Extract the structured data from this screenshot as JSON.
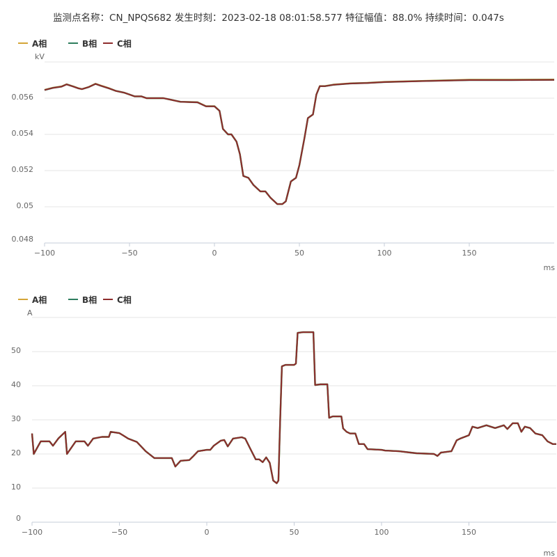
{
  "title": "监测点名称：CN_NPQS682 发生时刻：2023-02-18 08:01:58.577 特征幅值：88.0% 持续时间：0.047s",
  "colors": {
    "A": "#d4a537",
    "B": "#2e7d5e",
    "C": "#8e2c2c"
  },
  "chart_data": [
    {
      "type": "line",
      "ylabel": "kV",
      "xlabel": "ms",
      "xlim": [
        -100,
        200
      ],
      "ylim": [
        0.048,
        0.058
      ],
      "xticks": [
        "-100",
        "-50",
        "0",
        "50",
        "100",
        "150"
      ],
      "yticks": [
        "0.048",
        "0.05",
        "0.052",
        "0.054",
        "0.056"
      ],
      "grid": true,
      "legend": "top-left",
      "x": [
        -100,
        -95,
        -90,
        -87,
        -83,
        -80,
        -78,
        -74,
        -70,
        -67,
        -62,
        -58,
        -53,
        -50,
        -47,
        -43,
        -40,
        -30,
        -25,
        -20,
        -10,
        -5,
        0,
        3,
        5,
        8,
        10,
        13,
        15,
        17,
        20,
        23,
        27,
        30,
        33,
        37,
        40,
        42,
        45,
        48,
        50,
        53,
        55,
        58,
        60,
        62,
        65,
        70,
        80,
        90,
        100,
        120,
        150,
        175,
        200
      ],
      "series": [
        {
          "name": "A相",
          "values": [
            0.05646,
            0.05658,
            0.05665,
            0.05677,
            0.05665,
            0.05655,
            0.0565,
            0.05662,
            0.0568,
            0.0567,
            0.05655,
            0.0564,
            0.0563,
            0.0562,
            0.0561,
            0.0561,
            0.056,
            0.056,
            0.0559,
            0.0558,
            0.05578,
            0.05556,
            0.05556,
            0.0553,
            0.0543,
            0.054,
            0.054,
            0.0536,
            0.0529,
            0.0517,
            0.0516,
            0.0512,
            0.05085,
            0.05085,
            0.0505,
            0.05015,
            0.05015,
            0.0503,
            0.0514,
            0.0516,
            0.0523,
            0.0538,
            0.0549,
            0.0551,
            0.0562,
            0.05667,
            0.05667,
            0.05675,
            0.05682,
            0.05685,
            0.0569,
            0.05695,
            0.05702,
            0.05702,
            0.05703
          ]
        },
        {
          "name": "B相",
          "values": [
            0.05645,
            0.05657,
            0.05664,
            0.05676,
            0.05664,
            0.05654,
            0.0565,
            0.05661,
            0.05679,
            0.05669,
            0.05654,
            0.0564,
            0.0563,
            0.0562,
            0.0561,
            0.0561,
            0.056,
            0.056,
            0.0559,
            0.0558,
            0.05577,
            0.05555,
            0.05555,
            0.0553,
            0.0543,
            0.054,
            0.054,
            0.0536,
            0.0529,
            0.0517,
            0.0516,
            0.0512,
            0.05085,
            0.05085,
            0.0505,
            0.05015,
            0.05015,
            0.0503,
            0.0514,
            0.0516,
            0.0523,
            0.0538,
            0.0549,
            0.0551,
            0.0562,
            0.05666,
            0.05666,
            0.05674,
            0.05681,
            0.05684,
            0.05689,
            0.05694,
            0.057,
            0.057,
            0.05701
          ]
        },
        {
          "name": "C相",
          "values": [
            0.05645,
            0.05657,
            0.05664,
            0.05676,
            0.05664,
            0.05654,
            0.0565,
            0.05661,
            0.05679,
            0.05669,
            0.05654,
            0.0564,
            0.0563,
            0.0562,
            0.0561,
            0.0561,
            0.056,
            0.056,
            0.0559,
            0.0558,
            0.05577,
            0.05555,
            0.05555,
            0.0553,
            0.0543,
            0.054,
            0.054,
            0.0536,
            0.0529,
            0.0517,
            0.0516,
            0.0512,
            0.05085,
            0.05085,
            0.0505,
            0.05015,
            0.05015,
            0.0503,
            0.0514,
            0.0516,
            0.0523,
            0.0538,
            0.0549,
            0.0551,
            0.0562,
            0.05666,
            0.05666,
            0.05674,
            0.05681,
            0.05684,
            0.05689,
            0.05694,
            0.057,
            0.057,
            0.05701
          ]
        }
      ]
    },
    {
      "type": "line",
      "ylabel": "A",
      "xlabel": "ms",
      "xlim": [
        -100,
        200
      ],
      "ylim": [
        0,
        60
      ],
      "xticks": [
        "-100",
        "-50",
        "0",
        "50",
        "100",
        "150"
      ],
      "yticks": [
        "0",
        "10",
        "20",
        "30",
        "40",
        "50"
      ],
      "grid": true,
      "legend": "top-left",
      "x": [
        -100,
        -99,
        -95,
        -90,
        -88,
        -85,
        -81,
        -80,
        -75,
        -70,
        -68,
        -65,
        -60,
        -56,
        -55,
        -50,
        -48,
        -45,
        -40,
        -35,
        -30,
        -20,
        -18,
        -15,
        -10,
        -8,
        -5,
        0,
        2,
        4,
        8,
        10,
        12,
        15,
        20,
        22,
        25,
        28,
        30,
        32,
        34,
        36,
        38,
        40,
        41,
        42,
        43,
        45,
        50,
        51,
        52,
        55,
        61,
        62,
        65,
        69,
        70,
        72,
        77,
        78,
        80,
        82,
        85,
        87,
        90,
        92,
        100,
        102,
        110,
        120,
        130,
        132,
        134,
        140,
        143,
        145,
        150,
        152,
        155,
        160,
        165,
        170,
        172,
        175,
        178,
        180,
        182,
        185,
        188,
        192,
        195,
        198,
        200
      ],
      "series": [
        {
          "name": "A相",
          "values": [
            26,
            20,
            23.7,
            23.7,
            22.4,
            24.5,
            26.5,
            20,
            23.7,
            23.7,
            22.4,
            24.5,
            25,
            25,
            26.5,
            26.1,
            25.5,
            24.5,
            23.5,
            20.8,
            18.8,
            18.8,
            16.3,
            18,
            18.2,
            19.2,
            20.8,
            21.2,
            21.2,
            22.4,
            23.9,
            24.1,
            22.2,
            24.5,
            24.9,
            24.5,
            21.4,
            18.4,
            18.4,
            17.6,
            19,
            17.4,
            12.2,
            11.4,
            12.2,
            30,
            45.7,
            46.1,
            46.1,
            46.5,
            55.5,
            55.7,
            55.7,
            40.2,
            40.4,
            40.4,
            30.6,
            31,
            31,
            27.5,
            26.5,
            26,
            26,
            22.9,
            22.9,
            21.4,
            21.2,
            21,
            20.8,
            20.2,
            20,
            19.4,
            20.4,
            20.8,
            24,
            24.5,
            25.5,
            28,
            27.6,
            28.4,
            27.6,
            28.4,
            27.3,
            29,
            29,
            26.5,
            28,
            27.6,
            26,
            25.5,
            23.7,
            22.9,
            22.9
          ]
        },
        {
          "name": "B相",
          "values": [
            26,
            20,
            23.7,
            23.7,
            22.4,
            24.5,
            26.5,
            20,
            23.7,
            23.7,
            22.4,
            24.5,
            25,
            25,
            26.5,
            26.1,
            25.5,
            24.5,
            23.5,
            20.8,
            18.8,
            18.8,
            16.3,
            18,
            18.2,
            19.2,
            20.8,
            21.2,
            21.2,
            22.4,
            23.9,
            24.1,
            22.2,
            24.5,
            24.9,
            24.5,
            21.4,
            18.4,
            18.4,
            17.6,
            19,
            17.4,
            12.2,
            11.4,
            12.2,
            30,
            45.7,
            46.1,
            46.1,
            46.5,
            55.5,
            55.7,
            55.7,
            40.2,
            40.4,
            40.4,
            30.6,
            31,
            31,
            27.5,
            26.5,
            26,
            26,
            22.9,
            22.9,
            21.4,
            21.2,
            21,
            20.8,
            20.2,
            20,
            19.4,
            20.4,
            20.8,
            24,
            24.5,
            25.5,
            28,
            27.6,
            28.4,
            27.6,
            28.4,
            27.3,
            29,
            29,
            26.5,
            28,
            27.6,
            26,
            25.5,
            23.7,
            22.9,
            22.9
          ]
        },
        {
          "name": "C相",
          "values": [
            26,
            20,
            23.7,
            23.7,
            22.4,
            24.5,
            26.5,
            20,
            23.7,
            23.7,
            22.4,
            24.5,
            25,
            25,
            26.5,
            26.1,
            25.5,
            24.5,
            23.5,
            20.8,
            18.8,
            18.8,
            16.3,
            18,
            18.2,
            19.2,
            20.8,
            21.2,
            21.2,
            22.4,
            23.9,
            24.1,
            22.2,
            24.5,
            24.9,
            24.5,
            21.4,
            18.4,
            18.4,
            17.6,
            19,
            17.4,
            12.2,
            11.4,
            12.2,
            30,
            45.7,
            46.1,
            46.1,
            46.5,
            55.5,
            55.7,
            55.7,
            40.2,
            40.4,
            40.4,
            30.6,
            31,
            31,
            27.5,
            26.5,
            26,
            26,
            22.9,
            22.9,
            21.4,
            21.2,
            21,
            20.8,
            20.2,
            20,
            19.4,
            20.4,
            20.8,
            24,
            24.5,
            25.5,
            28,
            27.6,
            28.4,
            27.6,
            28.4,
            27.3,
            29,
            29,
            26.5,
            28,
            27.6,
            26,
            25.5,
            23.7,
            22.9,
            22.9
          ]
        }
      ]
    }
  ]
}
